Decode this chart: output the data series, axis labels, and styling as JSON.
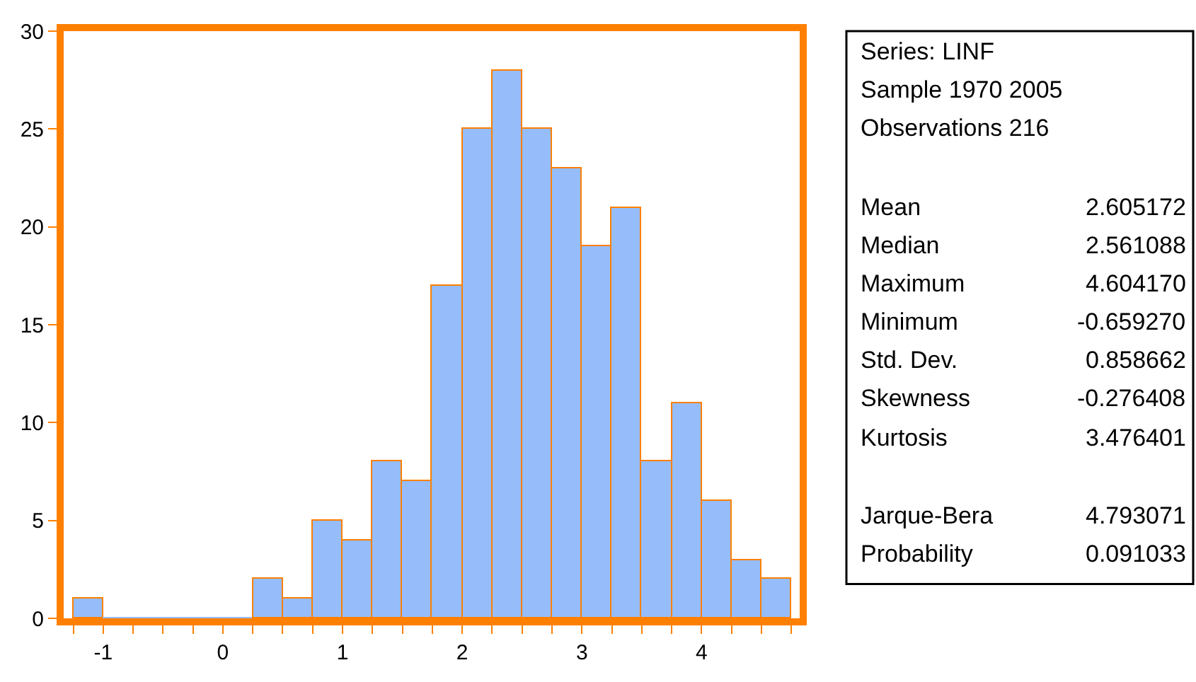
{
  "chart_data": {
    "type": "histogram",
    "bins": [
      -1.25,
      -1.0,
      -0.75,
      -0.5,
      -0.25,
      0.0,
      0.25,
      0.5,
      0.75,
      1.0,
      1.25,
      1.5,
      1.75,
      2.0,
      2.25,
      2.5,
      2.75,
      3.0,
      3.25,
      3.5,
      3.75,
      4.0,
      4.25,
      4.5,
      4.75
    ],
    "values": [
      1,
      0,
      0,
      0,
      0,
      0,
      2,
      1,
      5,
      4,
      8,
      7,
      17,
      25,
      28,
      25,
      23,
      19,
      21,
      8,
      11,
      6,
      3,
      2
    ],
    "color": "#96bdfa",
    "xlim": [
      -1.33,
      4.82
    ],
    "xticks": [
      {
        "value": -1.25,
        "label": null
      },
      -1,
      {
        "value": -0.75,
        "label": null
      },
      {
        "value": -0.5,
        "label": null
      },
      {
        "value": -0.25,
        "label": null
      },
      0,
      {
        "value": 0.25,
        "label": null
      },
      {
        "value": 0.5,
        "label": null
      },
      {
        "value": 0.75,
        "label": null
      },
      1,
      {
        "value": 1.25,
        "label": null
      },
      {
        "value": 1.5,
        "label": null
      },
      {
        "value": 1.75,
        "label": null
      },
      2,
      {
        "value": 2.25,
        "label": null
      },
      {
        "value": 2.5,
        "label": null
      },
      {
        "value": 2.75,
        "label": null
      },
      3,
      {
        "value": 3.25,
        "label": null
      },
      {
        "value": 3.5,
        "label": null
      },
      {
        "value": 3.75,
        "label": null
      },
      4,
      {
        "value": 4.25,
        "label": null
      },
      {
        "value": 4.5,
        "label": null
      },
      {
        "value": 4.75,
        "label": null
      }
    ],
    "ylim": [
      0,
      30
    ],
    "yticks": [
      0,
      5,
      10,
      15,
      20,
      25,
      30
    ],
    "annotations": [
      "Series: LINF",
      "Sample 1970 2005",
      "Observations 216",
      "Mean",
      "2.605172",
      "Median",
      "2.561088",
      "Maximum",
      "4.604170",
      "Minimum",
      "-0.659270",
      "Std. Dev.",
      "0.858662",
      "Skewness",
      "-0.276408",
      "Kurtosis",
      "3.476401",
      "Jarque-Bera",
      "4.793071",
      "Probability",
      "0.091033"
    ]
  }
}
